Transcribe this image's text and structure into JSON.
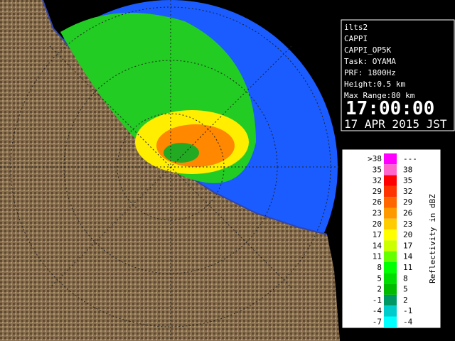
{
  "info": {
    "lines": [
      "ilts2",
      "CAPPI",
      "CAPPI_OP5K",
      "Task: OYAMA",
      "PRF: 1800Hz",
      "Height:0.5 km",
      "Max Range:80 km"
    ],
    "time": "17:00:00",
    "date": "17 APR 2015 JST"
  },
  "legend": {
    "title": "Reflectivity in dBZ",
    "rows": [
      {
        "low": ">38",
        "high": "---",
        "color": "#ff00ff"
      },
      {
        "low": "35",
        "high": "38",
        "color": "#ff66cc"
      },
      {
        "low": "32",
        "high": "35",
        "color": "#ff0000"
      },
      {
        "low": "29",
        "high": "32",
        "color": "#ff3300"
      },
      {
        "low": "26",
        "high": "29",
        "color": "#ff6600"
      },
      {
        "low": "23",
        "high": "26",
        "color": "#ff9900"
      },
      {
        "low": "20",
        "high": "23",
        "color": "#ffcc00"
      },
      {
        "low": "17",
        "high": "20",
        "color": "#ffff00"
      },
      {
        "low": "14",
        "high": "17",
        "color": "#ccff00"
      },
      {
        "low": "11",
        "high": "14",
        "color": "#66ff00"
      },
      {
        "low": "8",
        "high": "11",
        "color": "#00ff00"
      },
      {
        "low": "5",
        "high": "8",
        "color": "#00dd00"
      },
      {
        "low": "2",
        "high": "5",
        "color": "#00bb00"
      },
      {
        "low": "-1",
        "high": "2",
        "color": "#009966"
      },
      {
        "low": "-4",
        "high": "-1",
        "color": "#00cccc"
      },
      {
        "low": "-7",
        "high": "-4",
        "color": "#00ffff"
      }
    ]
  }
}
